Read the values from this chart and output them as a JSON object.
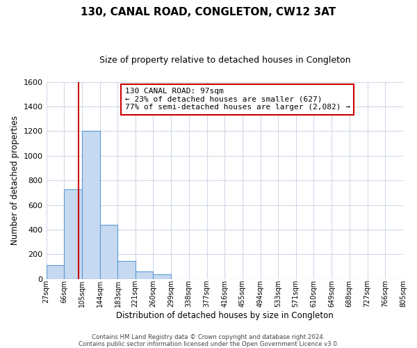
{
  "title": "130, CANAL ROAD, CONGLETON, CW12 3AT",
  "subtitle": "Size of property relative to detached houses in Congleton",
  "xlabel": "Distribution of detached houses by size in Congleton",
  "ylabel": "Number of detached properties",
  "bin_labels": [
    "27sqm",
    "66sqm",
    "105sqm",
    "144sqm",
    "183sqm",
    "221sqm",
    "260sqm",
    "299sqm",
    "338sqm",
    "377sqm",
    "416sqm",
    "455sqm",
    "494sqm",
    "533sqm",
    "571sqm",
    "610sqm",
    "649sqm",
    "688sqm",
    "727sqm",
    "766sqm",
    "805sqm"
  ],
  "bar_heights": [
    110,
    730,
    1200,
    440,
    145,
    60,
    35,
    0,
    0,
    0,
    0,
    0,
    0,
    0,
    0,
    0,
    0,
    0,
    0,
    0
  ],
  "bar_color": "#c6d9f0",
  "bar_edge_color": "#5b9bd5",
  "property_line_x": 97,
  "property_line_color": "#cc0000",
  "annotation_line1": "130 CANAL ROAD: 97sqm",
  "annotation_line2": "← 23% of detached houses are smaller (627)",
  "annotation_line3": "77% of semi-detached houses are larger (2,082) →",
  "annotation_box_color": "#cc0000",
  "ylim": [
    0,
    1600
  ],
  "yticks": [
    0,
    200,
    400,
    600,
    800,
    1000,
    1200,
    1400,
    1600
  ],
  "footer_text": "Contains HM Land Registry data © Crown copyright and database right 2024.\nContains public sector information licensed under the Open Government Licence v3.0.",
  "background_color": "#ffffff",
  "grid_color": "#d0d8e8"
}
